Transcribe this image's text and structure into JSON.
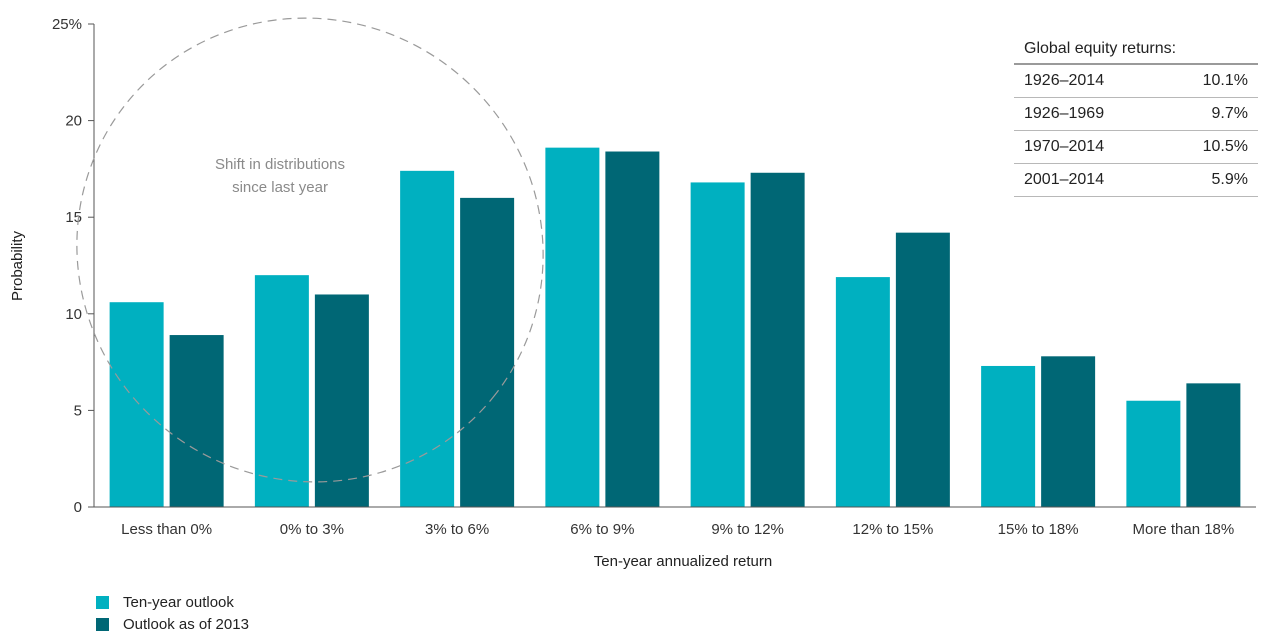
{
  "chart_data": {
    "type": "bar",
    "categories": [
      "Less than 0%",
      "0% to 3%",
      "3% to 6%",
      "6% to 9%",
      "9% to 12%",
      "12% to 15%",
      "15% to 18%",
      "More than 18%"
    ],
    "series": [
      {
        "name": "Ten-year outlook",
        "color": "#00b0c0",
        "values": [
          10.6,
          12.0,
          17.4,
          18.6,
          16.8,
          11.9,
          7.3,
          5.5
        ]
      },
      {
        "name": "Outlook as of 2013",
        "color": "#006775",
        "values": [
          8.9,
          11.0,
          16.0,
          18.4,
          17.3,
          14.2,
          7.8,
          6.4
        ]
      }
    ],
    "xlabel": "Ten-year annualized return",
    "ylabel": "Probability",
    "ylim": [
      0,
      25
    ],
    "yticks": [
      0,
      5,
      10,
      15,
      20,
      25
    ],
    "ytick_labels": [
      "0",
      "5",
      "10",
      "15",
      "20",
      "25%"
    ],
    "grid": false,
    "legend_position": "bottom-left",
    "annotation": {
      "lines": [
        "Shift in distributions",
        "since last year"
      ]
    }
  },
  "returns_table": {
    "title": "Global equity returns:",
    "rows": [
      {
        "period": "1926–2014",
        "value": "10.1%"
      },
      {
        "period": "1926–1969",
        "value": "9.7%"
      },
      {
        "period": "1970–2014",
        "value": "10.5%"
      },
      {
        "period": "2001–2014",
        "value": "5.9%"
      }
    ]
  }
}
